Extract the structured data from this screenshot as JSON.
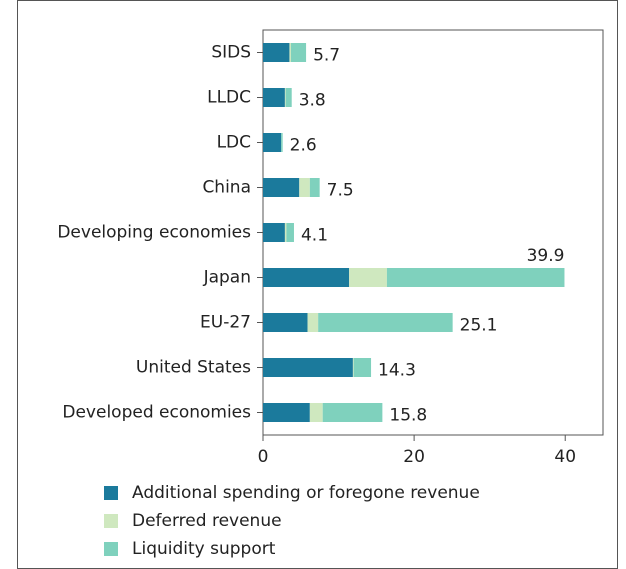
{
  "chart_data": {
    "type": "stacked-bar-horizontal",
    "categories": [
      "SIDS",
      "LLDC",
      "LDC",
      "China",
      "Developing economies",
      "Japan",
      "EU-27",
      "United States",
      "Developed economies"
    ],
    "series": [
      {
        "name": "Additional spending or foregone revenue",
        "color": "#1b7a9c",
        "values": [
          3.5,
          2.9,
          2.4,
          4.8,
          2.9,
          11.4,
          5.9,
          11.9,
          6.2
        ]
      },
      {
        "name": "Deferred revenue",
        "color": "#cfe8bf",
        "values": [
          0.2,
          0.1,
          0,
          1.4,
          0.2,
          5.0,
          1.4,
          0.1,
          1.7
        ]
      },
      {
        "name": "Liquidity support",
        "color": "#7fd1bd",
        "values": [
          2.0,
          0.8,
          0.2,
          1.3,
          1.0,
          23.5,
          17.8,
          2.3,
          7.9
        ]
      }
    ],
    "totals": [
      5.7,
      3.8,
      2.6,
      7.5,
      4.1,
      39.9,
      25.1,
      14.3,
      15.8
    ],
    "xlim": [
      0,
      45
    ],
    "xticks": [
      0,
      20,
      40
    ]
  }
}
